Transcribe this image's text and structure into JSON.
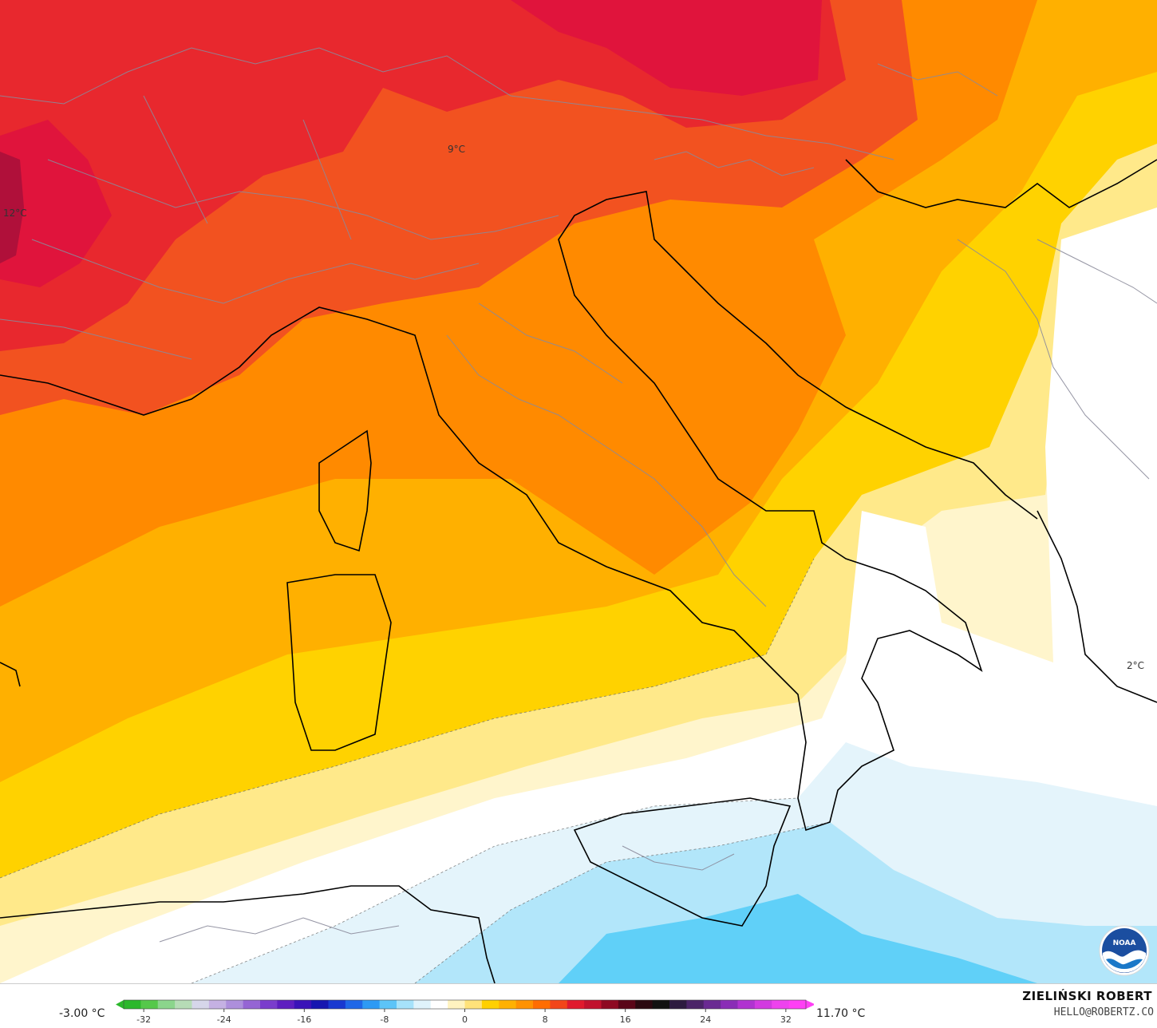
{
  "map": {
    "point_labels": [
      {
        "text": "12°C"
      },
      {
        "text": "9°C"
      },
      {
        "text": "2°C"
      }
    ],
    "logo": {
      "icon": "noaa-logo-icon",
      "text": "NOAA"
    }
  },
  "legend": {
    "min_label": "-3.00 °C",
    "max_label": "11.70 °C",
    "ticks": [
      "-32",
      "-24",
      "-16",
      "-8",
      "0",
      "8",
      "16",
      "24",
      "32"
    ],
    "tick_values": [
      -32,
      -24,
      -16,
      -8,
      0,
      8,
      16,
      24,
      32
    ],
    "range": [
      -34,
      34
    ],
    "colors": [
      "#2bb82b",
      "#55c84a",
      "#8bd58c",
      "#b6dcb6",
      "#d6d6ea",
      "#c5b1e3",
      "#ad8fdc",
      "#9565d4",
      "#7a3dcc",
      "#5e1fc0",
      "#3a13b8",
      "#1616b0",
      "#1838d0",
      "#1f67e8",
      "#2d9af4",
      "#5cc4f8",
      "#a6e2fa",
      "#dff3fb",
      "#ffffff",
      "#fff3c0",
      "#ffe27a",
      "#ffd000",
      "#ffb100",
      "#ff9200",
      "#ff6d00",
      "#f2461a",
      "#e01a2e",
      "#c1122e",
      "#8e0a22",
      "#5a0518",
      "#2a0810",
      "#111111",
      "#2d1b3f",
      "#4b2468",
      "#6a2a92",
      "#8a2db6",
      "#b033d0",
      "#d23ae0",
      "#ee42ee",
      "#ff3ff5"
    ]
  },
  "credit": {
    "name": "ZIELIŃSKI ROBERT",
    "email": "HELLO@ROBERTZ.CO"
  }
}
